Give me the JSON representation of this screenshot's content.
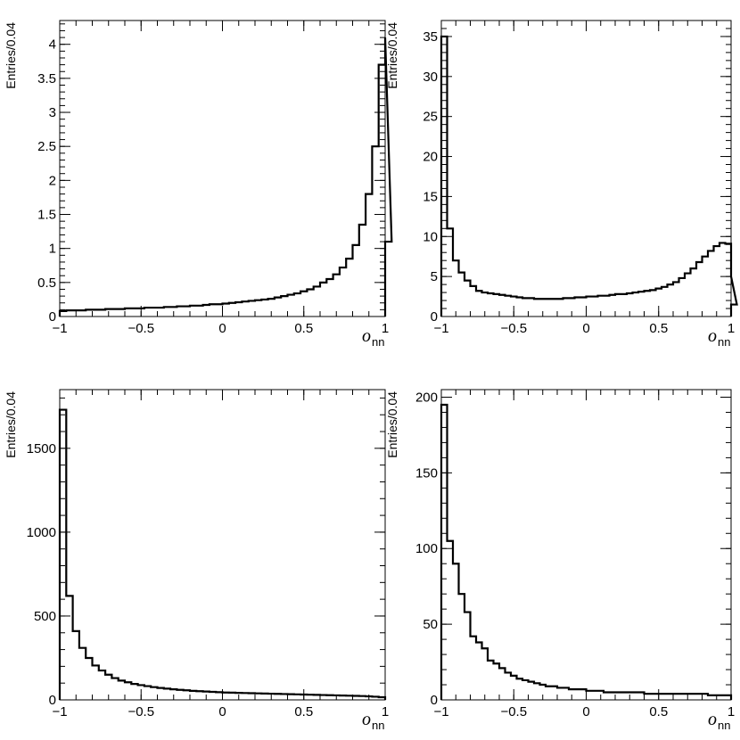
{
  "chart_data": [
    {
      "type": "histogram",
      "xlabel": "o",
      "xlabel_subscript": "nn",
      "ylabel": "Entries/0.04",
      "xlim": [
        -1,
        1
      ],
      "ylim": [
        0,
        4.35
      ],
      "bin_width": 0.04,
      "x_ticks": [
        -1,
        -0.5,
        0,
        0.5,
        1
      ],
      "x_tick_labels": [
        "−1",
        "−0.5",
        "0",
        "0.5",
        "1"
      ],
      "y_ticks": [
        0,
        0.5,
        1,
        1.5,
        2,
        2.5,
        3,
        3.5,
        4
      ],
      "y_tick_labels": [
        "0",
        "0.5",
        "1",
        "1.5",
        "2",
        "2.5",
        "3",
        "3.5",
        "4"
      ],
      "values": [
        0.08,
        0.09,
        0.09,
        0.09,
        0.1,
        0.1,
        0.1,
        0.11,
        0.11,
        0.11,
        0.12,
        0.12,
        0.12,
        0.13,
        0.13,
        0.13,
        0.14,
        0.14,
        0.15,
        0.15,
        0.16,
        0.16,
        0.17,
        0.18,
        0.18,
        0.19,
        0.2,
        0.21,
        0.22,
        0.23,
        0.24,
        0.25,
        0.26,
        0.28,
        0.3,
        0.32,
        0.34,
        0.37,
        0.4,
        0.44,
        0.5,
        0.55,
        0.62,
        0.72,
        0.85,
        1.05,
        1.35,
        1.8,
        2.5,
        3.7,
        4.1,
        1.1
      ]
    },
    {
      "type": "histogram",
      "xlabel": "o",
      "xlabel_subscript": "nn",
      "ylabel": "Entries/0.04",
      "xlim": [
        -1,
        1
      ],
      "ylim": [
        0,
        37
      ],
      "bin_width": 0.04,
      "x_ticks": [
        -1,
        -0.5,
        0,
        0.5,
        1
      ],
      "x_tick_labels": [
        "−1",
        "−0.5",
        "0",
        "0.5",
        "1"
      ],
      "y_ticks": [
        0,
        5,
        10,
        15,
        20,
        25,
        30,
        35
      ],
      "y_tick_labels": [
        "0",
        "5",
        "10",
        "15",
        "20",
        "25",
        "30",
        "35"
      ],
      "values": [
        35,
        11,
        7,
        5.5,
        4.5,
        3.8,
        3.2,
        3,
        2.9,
        2.8,
        2.7,
        2.6,
        2.5,
        2.4,
        2.3,
        2.3,
        2.2,
        2.2,
        2.2,
        2.2,
        2.2,
        2.3,
        2.3,
        2.4,
        2.4,
        2.5,
        2.5,
        2.6,
        2.6,
        2.7,
        2.8,
        2.8,
        2.9,
        3,
        3.1,
        3.2,
        3.3,
        3.5,
        3.7,
        4,
        4.3,
        4.8,
        5.4,
        6,
        6.8,
        7.5,
        8.2,
        8.8,
        9.2,
        9.1,
        5,
        1.5
      ]
    },
    {
      "type": "histogram",
      "xlabel": "o",
      "xlabel_subscript": "nn",
      "ylabel": "Entries/0.04",
      "xlim": [
        -1,
        1
      ],
      "ylim": [
        0,
        1850
      ],
      "bin_width": 0.04,
      "x_ticks": [
        -1,
        -0.5,
        0,
        0.5,
        1
      ],
      "x_tick_labels": [
        "−1",
        "−0.5",
        "0",
        "0.5",
        "1"
      ],
      "y_ticks": [
        0,
        500,
        1000,
        1500
      ],
      "y_tick_labels": [
        "0",
        "500",
        "1000",
        "1500"
      ],
      "values": [
        1730,
        620,
        410,
        310,
        250,
        205,
        175,
        150,
        130,
        115,
        105,
        95,
        88,
        82,
        76,
        71,
        67,
        63,
        60,
        57,
        54,
        52,
        50,
        48,
        46,
        44,
        43,
        42,
        41,
        40,
        39,
        38,
        37,
        36,
        35,
        34,
        33,
        32,
        31,
        30,
        29,
        28,
        27,
        26,
        25,
        24,
        23,
        21,
        19,
        16,
        12
      ]
    },
    {
      "type": "histogram",
      "xlabel": "o",
      "xlabel_subscript": "nn",
      "ylabel": "Entries/0.04",
      "xlim": [
        -1,
        1
      ],
      "ylim": [
        0,
        205
      ],
      "bin_width": 0.04,
      "x_ticks": [
        -1,
        -0.5,
        0,
        0.5,
        1
      ],
      "x_tick_labels": [
        "−1",
        "−0.5",
        "0",
        "0.5",
        "1"
      ],
      "y_ticks": [
        0,
        50,
        100,
        150,
        200
      ],
      "y_tick_labels": [
        "0",
        "50",
        "100",
        "150",
        "200"
      ],
      "values": [
        195,
        105,
        90,
        70,
        58,
        42,
        38,
        34,
        26,
        24,
        21,
        18,
        16,
        14,
        13,
        12,
        11,
        10,
        9,
        9,
        8,
        8,
        7,
        7,
        7,
        6,
        6,
        6,
        5,
        5,
        5,
        5,
        5,
        5,
        5,
        4,
        4,
        4,
        4,
        4,
        4,
        4,
        4,
        4,
        4,
        4,
        3,
        3,
        3,
        3,
        2
      ]
    }
  ]
}
